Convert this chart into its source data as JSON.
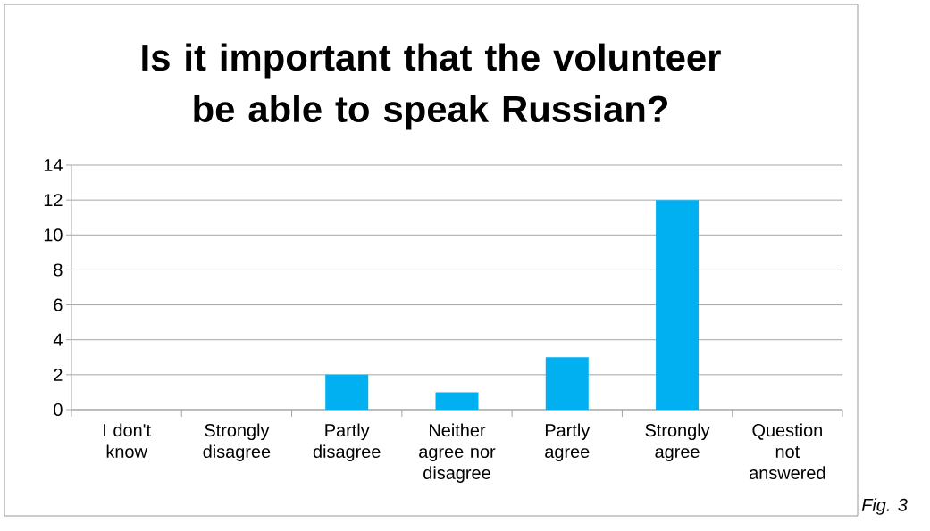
{
  "chart_data": {
    "type": "bar",
    "title": "Is it important that the volunteer be able to speak Russian?",
    "categories": [
      "I don't know",
      "Strongly disagree",
      "Partly disagree",
      "Neither agree nor disagree",
      "Partly agree",
      "Strongly agree",
      "Question not answered"
    ],
    "values": [
      0,
      0,
      2,
      1,
      3,
      12,
      0
    ],
    "color": "#00b0f0",
    "ylim": [
      0,
      14
    ],
    "yticks": [
      0,
      2,
      4,
      6,
      8,
      10,
      12,
      14
    ],
    "grid": "y",
    "annotations": [
      "Fig. 3"
    ]
  }
}
